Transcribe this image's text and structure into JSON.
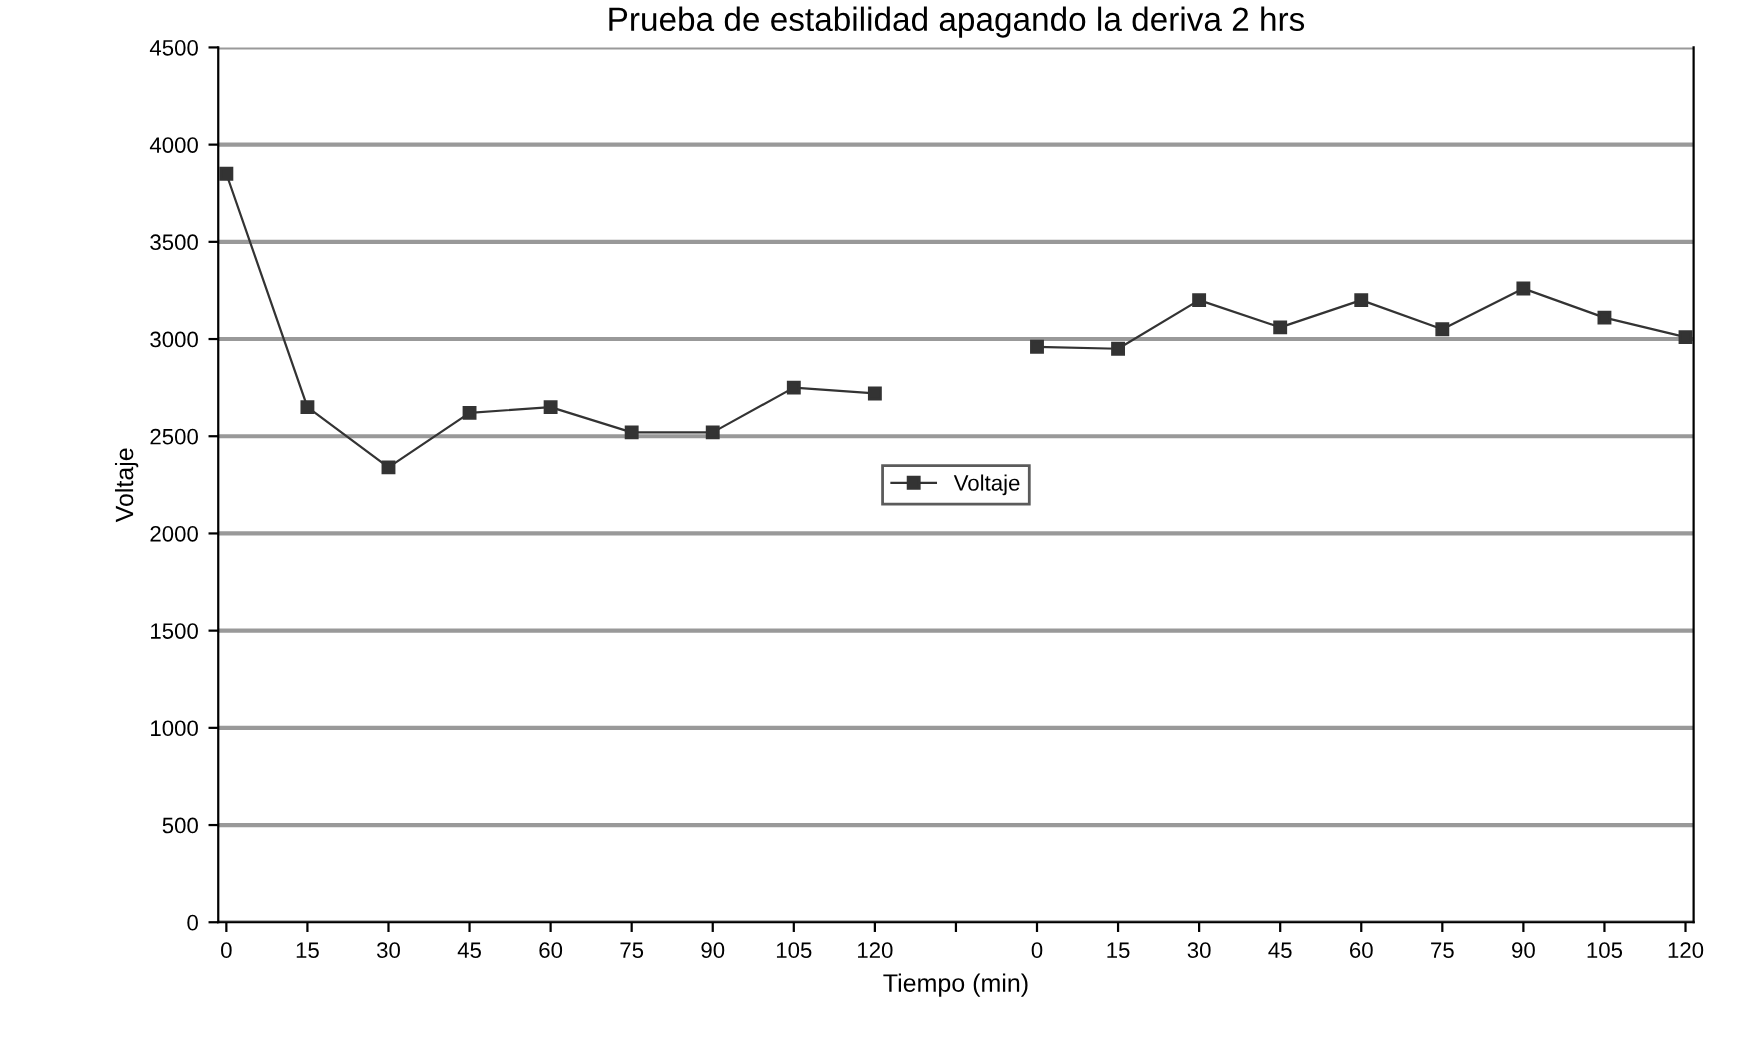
{
  "chart_data": {
    "type": "line",
    "title": "Prueba de estabilidad apagando la deriva 2 hrs",
    "xlabel": "Tiempo (min)",
    "ylabel": "Voltaje",
    "categories": [
      "0",
      "15",
      "30",
      "45",
      "60",
      "75",
      "90",
      "105",
      "120",
      null,
      "0",
      "15",
      "30",
      "45",
      "60",
      "75",
      "90",
      "105",
      "120"
    ],
    "series": [
      {
        "name": "Voltaje",
        "color": "#333333",
        "values": [
          3850,
          2650,
          2340,
          2620,
          2650,
          2520,
          2520,
          2750,
          2720,
          null,
          2960,
          2950,
          3200,
          3060,
          3200,
          3050,
          3260,
          3110,
          3010
        ]
      }
    ],
    "ylim": [
      0,
      4500
    ],
    "yticks": [
      0,
      500,
      1000,
      1500,
      2000,
      2500,
      3000,
      3500,
      4000,
      4500
    ],
    "grid": "y",
    "legend": "center",
    "marker": "square",
    "line_style": "solid"
  }
}
